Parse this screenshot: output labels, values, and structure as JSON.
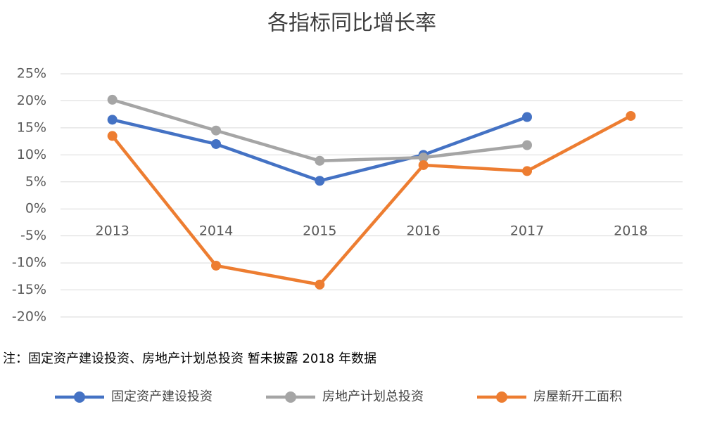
{
  "chart_data": {
    "type": "line",
    "title": "各指标同比增长率",
    "categories": [
      "2013",
      "2014",
      "2015",
      "2016",
      "2017",
      "2018"
    ],
    "series": [
      {
        "name": "固定资产建设投资",
        "color": "#4472c4",
        "values": [
          16.5,
          12,
          5.2,
          10,
          17,
          null
        ]
      },
      {
        "name": "房地产计划总投资",
        "color": "#a5a5a5",
        "values": [
          20.2,
          14.5,
          8.9,
          9.5,
          11.8,
          null
        ]
      },
      {
        "name": "房屋新开工面积",
        "color": "#ed7d31",
        "values": [
          13.5,
          -10.5,
          -14,
          8.1,
          7,
          17.2
        ]
      }
    ],
    "ylim": [
      -20,
      25
    ],
    "yticks": [
      {
        "value": -20,
        "label": "-20%"
      },
      {
        "value": -15,
        "label": "-15%"
      },
      {
        "value": -10,
        "label": "-10%"
      },
      {
        "value": -5,
        "label": "-5%"
      },
      {
        "value": 0,
        "label": "0%"
      },
      {
        "value": 5,
        "label": "5%"
      },
      {
        "value": 10,
        "label": "10%"
      },
      {
        "value": 15,
        "label": "15%"
      },
      {
        "value": 20,
        "label": "20%"
      },
      {
        "value": 25,
        "label": "25%"
      }
    ],
    "grid": true,
    "note": "注：固定资产建设投资、房地产计划总投资 暂未披露 2018 年数据"
  }
}
